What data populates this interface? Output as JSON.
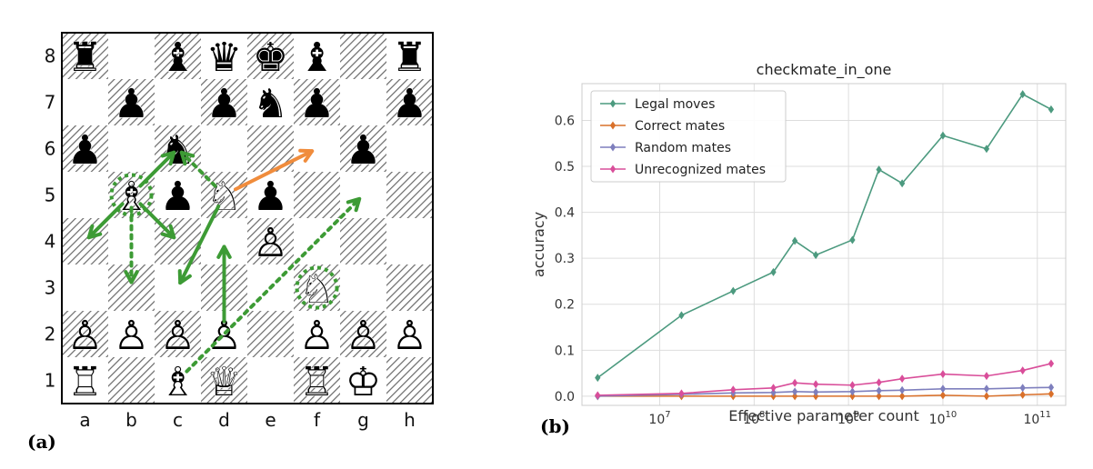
{
  "panels": {
    "a_label": "(a)",
    "b_label": "(b)"
  },
  "board": {
    "files": [
      "a",
      "b",
      "c",
      "d",
      "e",
      "f",
      "g",
      "h"
    ],
    "ranks": [
      "1",
      "2",
      "3",
      "4",
      "5",
      "6",
      "7",
      "8"
    ],
    "pieces": [
      {
        "square": "a8",
        "glyph": "♜",
        "name": "black-rook"
      },
      {
        "square": "c8",
        "glyph": "♝",
        "name": "black-bishop"
      },
      {
        "square": "d8",
        "glyph": "♛",
        "name": "black-queen"
      },
      {
        "square": "e8",
        "glyph": "♚",
        "name": "black-king"
      },
      {
        "square": "f8",
        "glyph": "♝",
        "name": "black-bishop"
      },
      {
        "square": "h8",
        "glyph": "♜",
        "name": "black-rook"
      },
      {
        "square": "b7",
        "glyph": "♟",
        "name": "black-pawn"
      },
      {
        "square": "d7",
        "glyph": "♟",
        "name": "black-pawn"
      },
      {
        "square": "e7",
        "glyph": "♞",
        "name": "black-knight"
      },
      {
        "square": "f7",
        "glyph": "♟",
        "name": "black-pawn"
      },
      {
        "square": "h7",
        "glyph": "♟",
        "name": "black-pawn"
      },
      {
        "square": "a6",
        "glyph": "♟",
        "name": "black-pawn"
      },
      {
        "square": "c6",
        "glyph": "♞",
        "name": "black-knight"
      },
      {
        "square": "g6",
        "glyph": "♟",
        "name": "black-pawn"
      },
      {
        "square": "b5",
        "glyph": "♗",
        "name": "white-bishop"
      },
      {
        "square": "c5",
        "glyph": "♟",
        "name": "black-pawn"
      },
      {
        "square": "d5",
        "glyph": "♘",
        "name": "white-knight"
      },
      {
        "square": "e5",
        "glyph": "♟",
        "name": "black-pawn"
      },
      {
        "square": "e4",
        "glyph": "♙",
        "name": "white-pawn"
      },
      {
        "square": "f3",
        "glyph": "♘",
        "name": "white-knight"
      },
      {
        "square": "a2",
        "glyph": "♙",
        "name": "white-pawn"
      },
      {
        "square": "b2",
        "glyph": "♙",
        "name": "white-pawn"
      },
      {
        "square": "c2",
        "glyph": "♙",
        "name": "white-pawn"
      },
      {
        "square": "d2",
        "glyph": "♙",
        "name": "white-pawn"
      },
      {
        "square": "f2",
        "glyph": "♙",
        "name": "white-pawn"
      },
      {
        "square": "g2",
        "glyph": "♙",
        "name": "white-pawn"
      },
      {
        "square": "h2",
        "glyph": "♙",
        "name": "white-pawn"
      },
      {
        "square": "a1",
        "glyph": "♖",
        "name": "white-rook"
      },
      {
        "square": "c1",
        "glyph": "♗",
        "name": "white-bishop"
      },
      {
        "square": "d1",
        "glyph": "♕",
        "name": "white-queen"
      },
      {
        "square": "f1",
        "glyph": "♖",
        "name": "white-rook"
      },
      {
        "square": "g1",
        "glyph": "♔",
        "name": "white-king"
      }
    ],
    "arrows": [
      {
        "from": "b5",
        "to": "a4",
        "style": "solid",
        "color": "#3d9b35"
      },
      {
        "from": "b5",
        "to": "c4",
        "style": "solid",
        "color": "#3d9b35"
      },
      {
        "from": "b5",
        "to": "c6",
        "style": "solid",
        "color": "#3d9b35"
      },
      {
        "from": "b5",
        "to": "b3",
        "style": "dotted",
        "color": "#3d9b35"
      },
      {
        "from": "d5",
        "to": "c3",
        "style": "solid",
        "color": "#3d9b35"
      },
      {
        "from": "d2",
        "to": "d4",
        "style": "solid",
        "color": "#3d9b35"
      },
      {
        "from": "d5",
        "to": "c6",
        "style": "dotted",
        "color": "#3d9b35"
      },
      {
        "from": "c1",
        "to": "g5",
        "style": "dotted",
        "color": "#3d9b35"
      },
      {
        "from": "d5",
        "to": "f6",
        "style": "solid",
        "color": "#f08c3c"
      }
    ],
    "highlights": [
      {
        "square": "b5",
        "color": "#3d9b35"
      },
      {
        "square": "f3",
        "color": "#3d9b35"
      }
    ]
  },
  "chart_data": {
    "type": "line",
    "title": "checkmate_in_one",
    "xlabel": "Effective parameter count",
    "ylabel": "accuracy",
    "xscale": "log",
    "xlim": [
      1500000.0,
      200000000000.0
    ],
    "ylim": [
      -0.02,
      0.68
    ],
    "xticks": [
      {
        "value": 10000000.0,
        "base": "10",
        "exp": "7"
      },
      {
        "value": 100000000.0,
        "base": "10",
        "exp": "8"
      },
      {
        "value": 1000000000.0,
        "base": "10",
        "exp": "9"
      },
      {
        "value": 10000000000.0,
        "base": "10",
        "exp": "10"
      },
      {
        "value": 100000000000.0,
        "base": "10",
        "exp": "11"
      }
    ],
    "yticks": [
      "0.0",
      "0.1",
      "0.2",
      "0.3",
      "0.4",
      "0.5",
      "0.6"
    ],
    "grid": true,
    "legend": "top-left",
    "x": [
      2200000.0,
      17000000.0,
      60000000.0,
      160000000.0,
      270000000.0,
      450000000.0,
      1100000000.0,
      2100000000.0,
      3700000000.0,
      10000000000.0,
      29000000000.0,
      70000000000.0,
      140000000000.0
    ],
    "series": [
      {
        "name": "Legal moves",
        "color": "#4c9a7f",
        "values": [
          0.04,
          0.176,
          0.229,
          0.27,
          0.338,
          0.307,
          0.34,
          0.493,
          0.463,
          0.567,
          0.538,
          0.657,
          0.624
        ]
      },
      {
        "name": "Correct mates",
        "color": "#d9702a",
        "values": [
          0.0,
          0.0,
          0.0,
          0.0,
          0.0,
          0.0,
          0.0,
          0.0,
          0.0,
          0.002,
          0.0,
          0.003,
          0.005
        ]
      },
      {
        "name": "Random mates",
        "color": "#7e7fbd",
        "values": [
          0.0,
          0.004,
          0.007,
          0.008,
          0.01,
          0.009,
          0.01,
          0.012,
          0.013,
          0.016,
          0.016,
          0.018,
          0.019
        ]
      },
      {
        "name": "Unrecognized mates",
        "color": "#d94e9a",
        "values": [
          0.002,
          0.006,
          0.014,
          0.018,
          0.029,
          0.026,
          0.024,
          0.03,
          0.038,
          0.048,
          0.044,
          0.056,
          0.071
        ]
      }
    ]
  }
}
